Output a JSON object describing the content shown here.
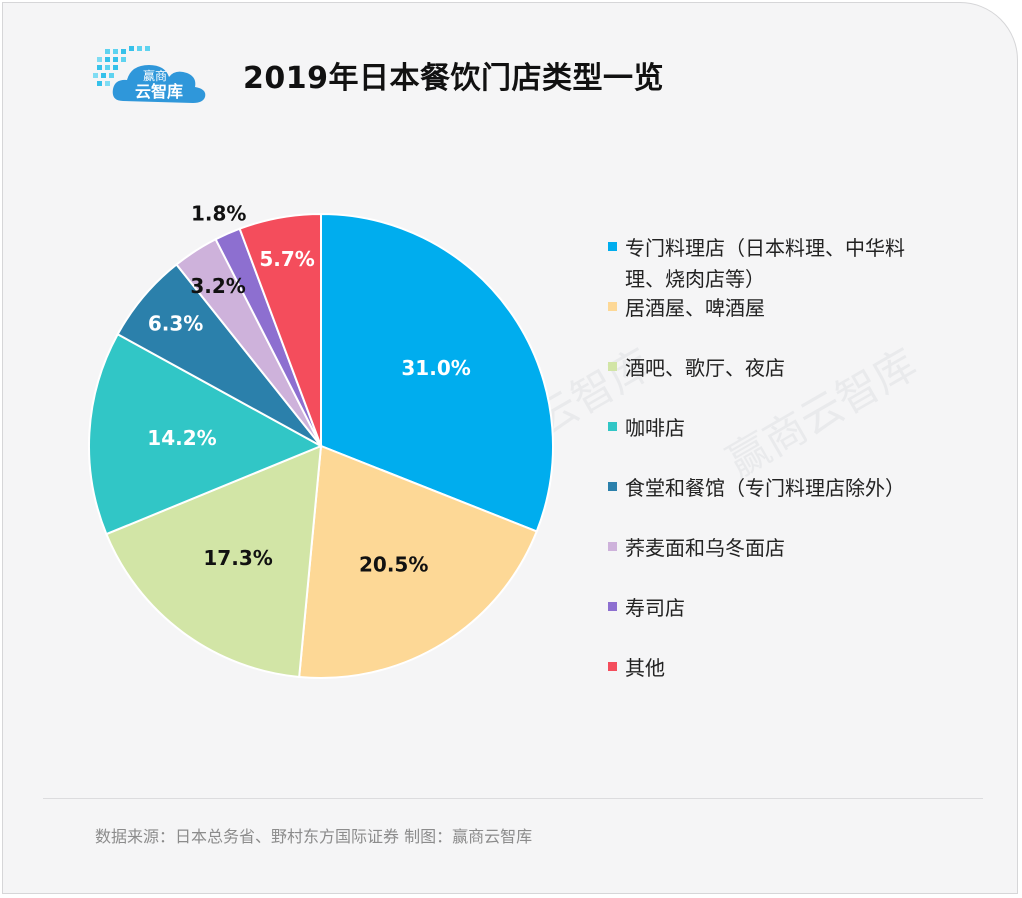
{
  "header": {
    "title": "2019年日本餐饮门店类型一览",
    "logo_text_top": "赢商",
    "logo_text_bottom": "云智库"
  },
  "watermark": "赢商云智库",
  "footer": {
    "source": "数据来源：日本总务省、野村东方国际证券   制图：赢商云智库"
  },
  "chart_data": {
    "type": "pie",
    "title": "2019年日本餐饮门店类型一览",
    "legend_position": "right",
    "start_angle": "12 o'clock",
    "direction": "clockwise",
    "slices": [
      {
        "legend": [
          "专门料理店（日本料理、中华料",
          "理、烧肉店等）"
        ],
        "value": 31.0,
        "label": "31.0%",
        "color": "#00adee"
      },
      {
        "legend": [
          "居酒屋、啤酒屋"
        ],
        "value": 20.5,
        "label": "20.5%",
        "color": "#fdd896"
      },
      {
        "legend": [
          "酒吧、歌厅、夜店"
        ],
        "value": 17.3,
        "label": "17.3%",
        "color": "#d2e5a6"
      },
      {
        "legend": [
          "咖啡店"
        ],
        "value": 14.2,
        "label": "14.2%",
        "color": "#31c6c6"
      },
      {
        "legend": [
          "食堂和餐馆（专门料理店除外）"
        ],
        "value": 6.3,
        "label": "6.3%",
        "color": "#2b80ab"
      },
      {
        "legend": [
          "荞麦面和乌冬面店"
        ],
        "value": 3.2,
        "label": "3.2%",
        "color": "#ceb2db"
      },
      {
        "legend": [
          "寿司店"
        ],
        "value": 1.8,
        "label": "1.8%",
        "color": "#8d6fd0"
      },
      {
        "legend": [
          "其他"
        ],
        "value": 5.7,
        "label": "5.7%",
        "color": "#f44d5c"
      }
    ]
  }
}
